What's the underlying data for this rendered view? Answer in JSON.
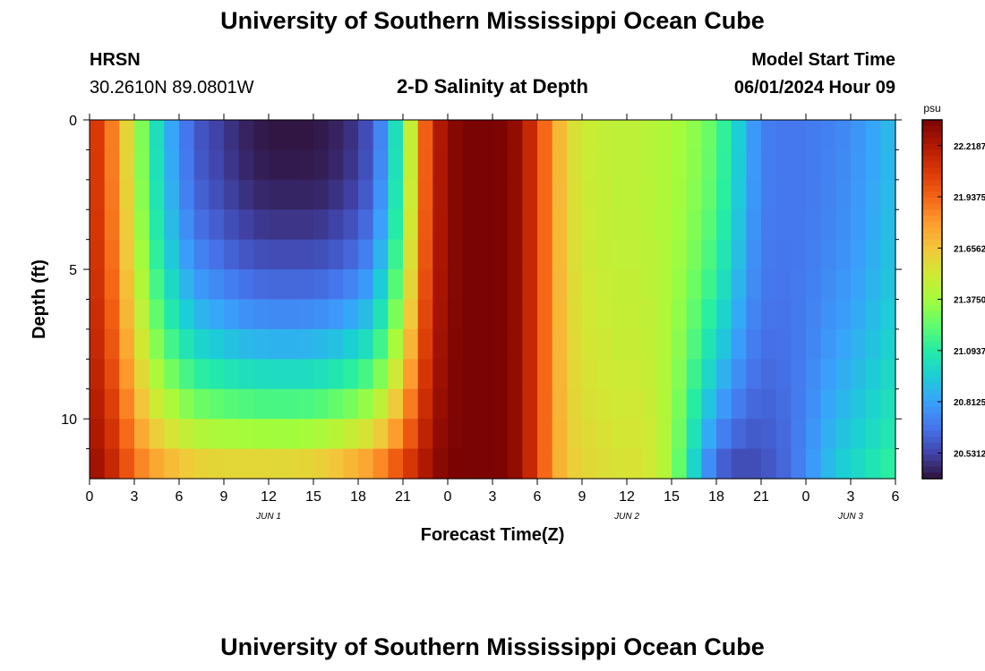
{
  "header": {
    "title": "University of Southern Mississippi Ocean Cube",
    "station": "HRSN",
    "coordinates": "30.2610N  89.0801W",
    "chart_title": "2-D Salinity at Depth",
    "model_start_label": "Model Start Time",
    "model_start_value": "06/01/2024 Hour 09"
  },
  "footer": {
    "title": "University of Southern Mississippi Ocean Cube"
  },
  "chart_data": {
    "type": "heatmap",
    "title": "2-D Salinity at Depth",
    "xlabel": "Forecast Time(Z)",
    "ylabel": "Depth (ft)",
    "x_tick_labels": [
      "0",
      "3",
      "6",
      "9",
      "12",
      "15",
      "18",
      "21",
      "0",
      "3",
      "6",
      "9",
      "12",
      "15",
      "18",
      "21",
      "0",
      "3",
      "6"
    ],
    "date_labels": [
      {
        "label": "JUN 1",
        "at_hour": 12
      },
      {
        "label": "JUN 2",
        "at_hour": 36
      },
      {
        "label": "JUN 3",
        "at_hour": 51
      }
    ],
    "xlim_hours": [
      0,
      54
    ],
    "y_tick_labels": [
      "0",
      "5",
      "10"
    ],
    "ylim": [
      0,
      12
    ],
    "units": "psu",
    "colorbar_ticks": [
      "22.2187",
      "21.9375",
      "21.6562",
      "21.3750",
      "21.0937",
      "20.8125",
      "20.5312"
    ],
    "colorbar_range": [
      20.39,
      22.36
    ],
    "colormap": [
      "#30123b",
      "#4145ab",
      "#4675ed",
      "#39a2fc",
      "#1bcfd4",
      "#24eca6",
      "#61fc6c",
      "#a4fc3b",
      "#d1e834",
      "#f3c63a",
      "#fe9b2d",
      "#f36315",
      "#d93806",
      "#b11901",
      "#7a0403"
    ],
    "series_time_profile": {
      "hours": [
        0,
        1,
        2,
        3,
        4,
        5,
        6,
        7,
        8,
        9,
        10,
        11,
        12,
        13,
        14,
        15,
        16,
        17,
        18,
        19,
        20,
        21,
        22,
        23,
        24,
        25,
        26,
        27,
        28,
        29,
        30,
        31,
        32,
        33,
        34,
        35,
        36,
        37,
        38,
        39,
        40,
        41,
        42,
        43,
        44,
        45,
        46,
        47,
        48,
        49,
        50,
        51,
        52,
        53,
        54
      ],
      "surface_psu": [
        22.15,
        22.0,
        21.75,
        21.45,
        21.15,
        20.9,
        20.75,
        20.6,
        20.55,
        20.5,
        20.45,
        20.42,
        20.4,
        20.4,
        20.4,
        20.4,
        20.42,
        20.45,
        20.5,
        20.6,
        20.85,
        21.2,
        21.75,
        22.15,
        22.3,
        22.36,
        22.36,
        22.36,
        22.35,
        22.25,
        22.05,
        21.8,
        21.6,
        21.5,
        21.48,
        21.45,
        21.45,
        21.45,
        21.42,
        21.4,
        21.35,
        21.3,
        21.2,
        21.05,
        20.85,
        20.72,
        20.68,
        20.68,
        20.68,
        20.7,
        20.72,
        20.75,
        20.8,
        20.85,
        20.9
      ],
      "bottom_psu": [
        22.3,
        22.25,
        22.1,
        21.95,
        21.85,
        21.8,
        21.75,
        21.72,
        21.7,
        21.7,
        21.7,
        21.7,
        21.7,
        21.7,
        21.7,
        21.72,
        21.75,
        21.8,
        21.85,
        21.9,
        22.0,
        22.1,
        22.2,
        22.3,
        22.36,
        22.36,
        22.36,
        22.36,
        22.35,
        22.25,
        22.05,
        21.8,
        21.65,
        21.6,
        21.58,
        21.55,
        21.55,
        21.55,
        21.5,
        21.35,
        21.1,
        20.8,
        20.6,
        20.52,
        20.52,
        20.55,
        20.6,
        20.65,
        20.75,
        20.85,
        20.95,
        21.0,
        21.05,
        21.1,
        21.15
      ]
    }
  }
}
